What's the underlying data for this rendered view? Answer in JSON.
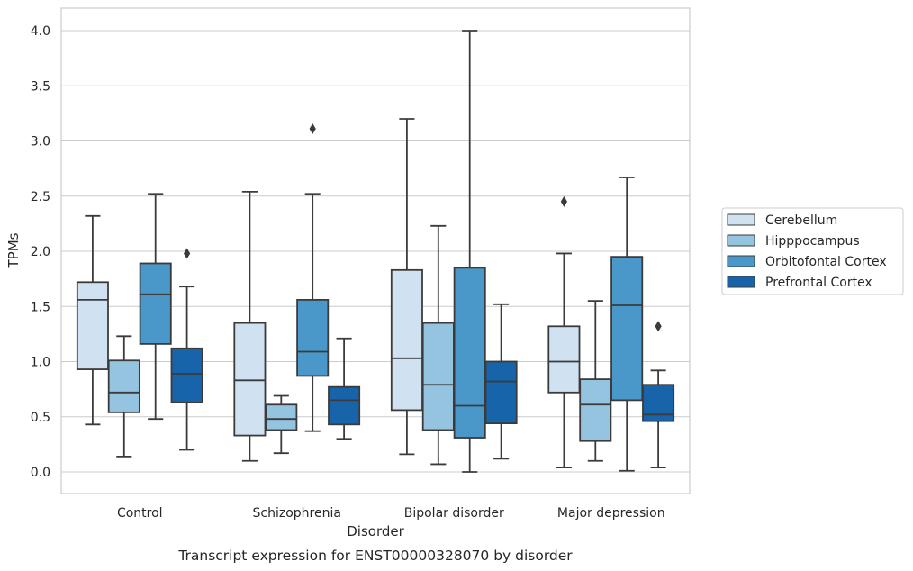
{
  "caption": "Transcript expression for ENST00000328070 by disorder",
  "chart_data": {
    "type": "box",
    "xlabel": "Disorder",
    "ylabel": "TPMs",
    "ylim": [
      -0.19,
      4.2
    ],
    "yticks": [
      0.0,
      0.5,
      1.0,
      1.5,
      2.0,
      2.5,
      3.0,
      3.5,
      4.0
    ],
    "ytick_labels": [
      "0.0",
      "0.5",
      "1.0",
      "1.5",
      "2.0",
      "2.5",
      "3.0",
      "3.5",
      "4.0"
    ],
    "grid": "horizontal",
    "legend_position": "right",
    "categories": [
      "Control",
      "Schizophrenia",
      "Bipolar disorder",
      "Major depression"
    ],
    "series": [
      {
        "name": "Cerebellum",
        "color": "#d0e1f2",
        "boxes": [
          {
            "whislo": 0.43,
            "q1": 0.93,
            "med": 1.56,
            "q3": 1.72,
            "whishi": 2.32,
            "fliers": []
          },
          {
            "whislo": 0.1,
            "q1": 0.33,
            "med": 0.83,
            "q3": 1.35,
            "whishi": 2.54,
            "fliers": []
          },
          {
            "whislo": 0.16,
            "q1": 0.56,
            "med": 1.03,
            "q3": 1.83,
            "whishi": 3.2,
            "fliers": []
          },
          {
            "whislo": 0.04,
            "q1": 0.72,
            "med": 1.0,
            "q3": 1.32,
            "whishi": 1.98,
            "fliers": [
              2.45
            ]
          }
        ]
      },
      {
        "name": "Hipppocampus",
        "color": "#94c4df",
        "boxes": [
          {
            "whislo": 0.14,
            "q1": 0.54,
            "med": 0.72,
            "q3": 1.01,
            "whishi": 1.23,
            "fliers": []
          },
          {
            "whislo": 0.17,
            "q1": 0.38,
            "med": 0.48,
            "q3": 0.61,
            "whishi": 0.69,
            "fliers": []
          },
          {
            "whislo": 0.07,
            "q1": 0.38,
            "med": 0.79,
            "q3": 1.35,
            "whishi": 2.23,
            "fliers": []
          },
          {
            "whislo": 0.1,
            "q1": 0.28,
            "med": 0.61,
            "q3": 0.84,
            "whishi": 1.55,
            "fliers": []
          }
        ]
      },
      {
        "name": "Orbitofontal Cortex",
        "color": "#4a98c9",
        "boxes": [
          {
            "whislo": 0.48,
            "q1": 1.16,
            "med": 1.61,
            "q3": 1.89,
            "whishi": 2.52,
            "fliers": []
          },
          {
            "whislo": 0.37,
            "q1": 0.87,
            "med": 1.09,
            "q3": 1.56,
            "whishi": 2.52,
            "fliers": [
              3.11
            ]
          },
          {
            "whislo": 0.0,
            "q1": 0.31,
            "med": 0.6,
            "q3": 1.85,
            "whishi": 4.0,
            "fliers": []
          },
          {
            "whislo": 0.01,
            "q1": 0.65,
            "med": 1.51,
            "q3": 1.95,
            "whishi": 2.67,
            "fliers": []
          }
        ]
      },
      {
        "name": "Prefrontal Cortex",
        "color": "#1764ab",
        "boxes": [
          {
            "whislo": 0.2,
            "q1": 0.63,
            "med": 0.89,
            "q3": 1.12,
            "whishi": 1.68,
            "fliers": [
              1.98
            ]
          },
          {
            "whislo": 0.3,
            "q1": 0.43,
            "med": 0.65,
            "q3": 0.77,
            "whishi": 1.21,
            "fliers": []
          },
          {
            "whislo": 0.12,
            "q1": 0.44,
            "med": 0.82,
            "q3": 1.0,
            "whishi": 1.52,
            "fliers": []
          },
          {
            "whislo": 0.04,
            "q1": 0.46,
            "med": 0.52,
            "q3": 0.79,
            "whishi": 0.92,
            "fliers": [
              1.32
            ]
          }
        ]
      }
    ]
  }
}
